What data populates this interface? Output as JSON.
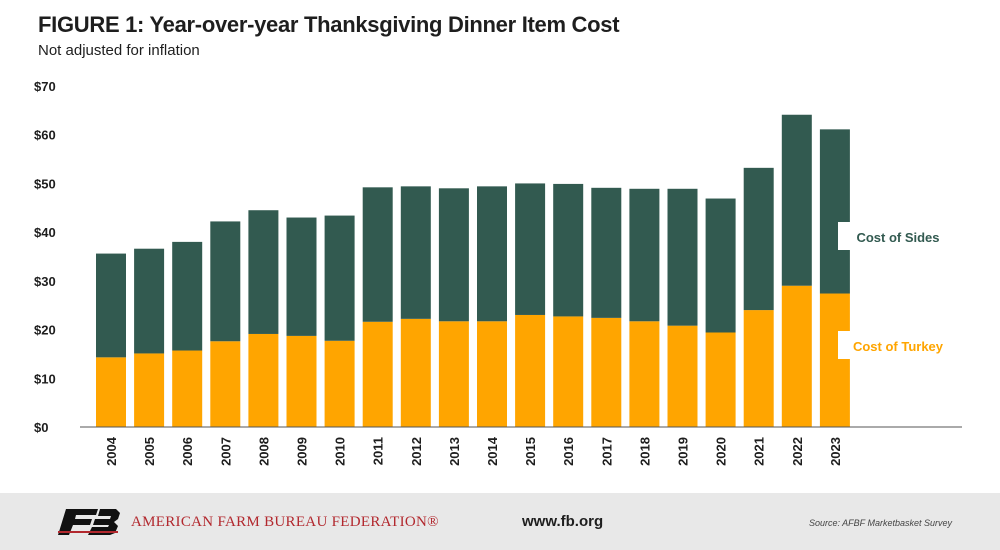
{
  "header": {
    "title": "FIGURE 1: Year-over-year Thanksgiving Dinner Item Cost",
    "subtitle": "Not adjusted for inflation"
  },
  "chart_data": {
    "type": "bar",
    "stacked": true,
    "categories": [
      "2004",
      "2005",
      "2006",
      "2007",
      "2008",
      "2009",
      "2010",
      "2011",
      "2012",
      "2013",
      "2014",
      "2015",
      "2016",
      "2017",
      "2018",
      "2019",
      "2020",
      "2021",
      "2022",
      "2023"
    ],
    "series": [
      {
        "name": "Cost of Turkey",
        "color": "#ffa500",
        "values": [
          14.3,
          15.1,
          15.7,
          17.6,
          19.1,
          18.7,
          17.7,
          21.6,
          22.2,
          21.7,
          21.7,
          23.0,
          22.7,
          22.4,
          21.7,
          20.8,
          19.4,
          24.0,
          29.0,
          27.4
        ]
      },
      {
        "name": "Cost of Sides",
        "color": "#325a50",
        "values": [
          21.3,
          21.5,
          22.3,
          24.6,
          25.4,
          24.3,
          25.7,
          27.6,
          27.2,
          27.3,
          27.7,
          27.0,
          27.2,
          26.7,
          27.2,
          28.1,
          27.5,
          29.2,
          35.1,
          33.7
        ]
      }
    ],
    "ylim": [
      0,
      70
    ],
    "yticks": [
      0,
      10,
      20,
      30,
      40,
      50,
      60,
      70
    ],
    "ytick_labels": [
      "$0",
      "$10",
      "$20",
      "$30",
      "$40",
      "$50",
      "$60",
      "$70"
    ],
    "grid": false,
    "legend": "inline-labels-right"
  },
  "footer": {
    "org": "AMERICAN FARM BUREAU FEDERATION®",
    "url": "www.fb.org",
    "source": "Source: AFBF Marketbasket Survey",
    "logo_text": "FB"
  }
}
